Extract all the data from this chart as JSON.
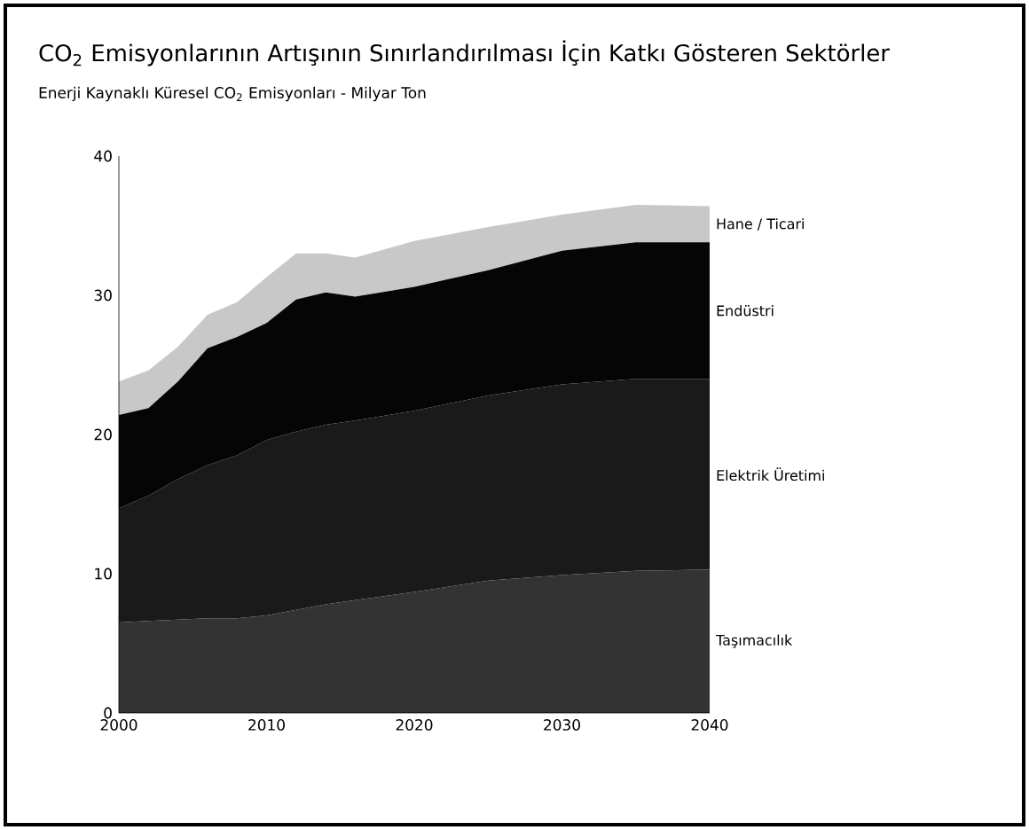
{
  "chart_data": {
    "type": "area",
    "stacked": true,
    "title": "CO$_{2}$ Emisyonlarının Artışının Sınırlandırılması İçin Katkı Gösteren Sektörler",
    "subtitle": "Enerji Kaynaklı Küresel CO$_{2}$ Emisyonları - Milyar Ton",
    "x": [
      2000,
      2002,
      2004,
      2006,
      2008,
      2010,
      2012,
      2014,
      2016,
      2020,
      2025,
      2030,
      2035,
      2040
    ],
    "series": [
      {
        "name": "Taşımacılık",
        "color": "#333333",
        "values": [
          6.5,
          6.6,
          6.7,
          6.8,
          6.8,
          7.0,
          7.4,
          7.8,
          8.1,
          8.7,
          9.5,
          9.9,
          10.2,
          10.3
        ]
      },
      {
        "name": "Elektrik Üretimi",
        "color": "#1a1a1a",
        "values": [
          8.2,
          9.0,
          10.1,
          11.0,
          11.7,
          12.6,
          12.8,
          12.9,
          12.9,
          13.0,
          13.3,
          13.7,
          13.8,
          13.7
        ]
      },
      {
        "name": "Endüstri",
        "color": "#050505",
        "values": [
          6.7,
          6.3,
          7.0,
          8.4,
          8.5,
          8.4,
          9.5,
          9.5,
          8.9,
          8.9,
          9.0,
          9.6,
          9.8,
          9.8
        ]
      },
      {
        "name": "Hane / Ticari",
        "color": "#c8c8c8",
        "values": [
          2.4,
          2.7,
          2.5,
          2.4,
          2.5,
          3.3,
          3.3,
          2.8,
          2.8,
          3.3,
          3.1,
          2.6,
          2.7,
          2.6
        ]
      }
    ],
    "xlim": [
      2000,
      2040
    ],
    "xticks": [
      2000,
      2010,
      2020,
      2030,
      2040
    ],
    "ylim": [
      0,
      40
    ],
    "yticks": [
      0,
      10,
      20,
      30,
      40
    ],
    "grid": false,
    "legend": false
  }
}
